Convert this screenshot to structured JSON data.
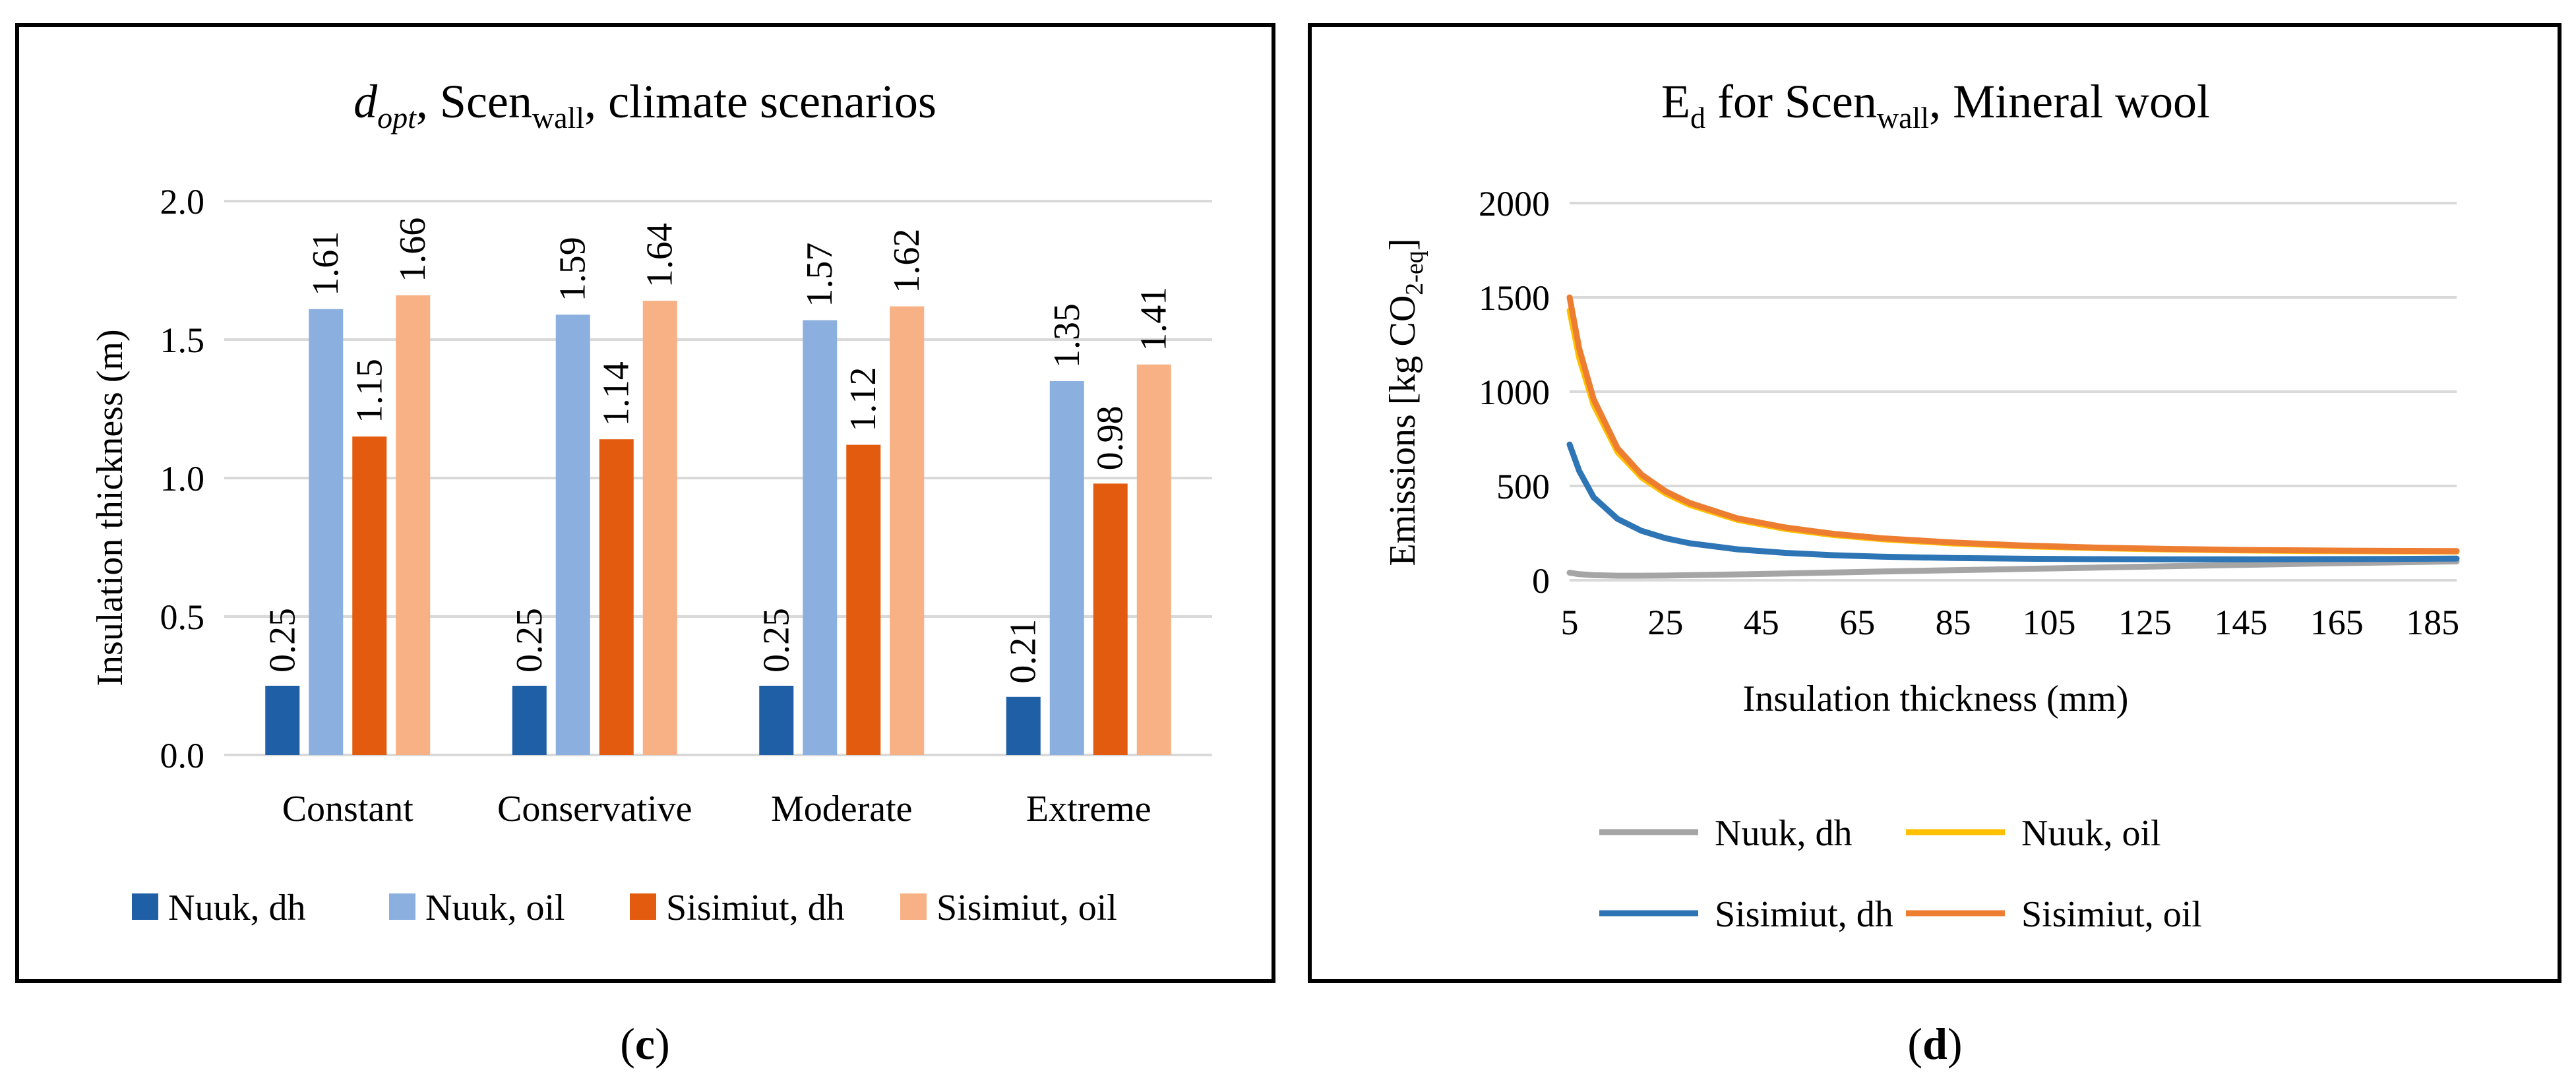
{
  "chart_data": [
    {
      "panel": "c",
      "type": "bar",
      "title": {
        "main": "d",
        "main_sub": "opt",
        "mid": ", Scen",
        "mid_sub": "wall",
        "tail": ", climate scenarios"
      },
      "xlabel": "",
      "ylabel": "Insulation thickness (m)",
      "ylim": [
        0,
        2
      ],
      "yticks": [
        "0.0",
        "0.5",
        "1.0",
        "1.5",
        "2.0"
      ],
      "grid": true,
      "categories": [
        "Constant",
        "Conservative",
        "Moderate",
        "Extreme"
      ],
      "series": [
        {
          "name": "Nuuk, dh",
          "color": "#1F5FA6",
          "values": [
            0.25,
            0.25,
            0.25,
            0.21
          ],
          "labels": [
            "0.25",
            "0.25",
            "0.25",
            "0.21"
          ]
        },
        {
          "name": "Nuuk, oil",
          "color": "#8BB0DF",
          "values": [
            1.61,
            1.59,
            1.57,
            1.35
          ],
          "labels": [
            "1.61",
            "1.59",
            "1.57",
            "1.35"
          ]
        },
        {
          "name": "Sisimiut, dh",
          "color": "#E35B0E",
          "values": [
            1.15,
            1.14,
            1.12,
            0.98
          ],
          "labels": [
            "1.15",
            "1.14",
            "1.12",
            "0.98"
          ]
        },
        {
          "name": "Sisimiut, oil",
          "color": "#F8B184",
          "values": [
            1.66,
            1.64,
            1.62,
            1.41
          ],
          "labels": [
            "1.66",
            "1.64",
            "1.62",
            "1.41"
          ]
        }
      ],
      "legend_position": "bottom",
      "caption": {
        "open": "(",
        "letter": "c",
        "close": ")"
      }
    },
    {
      "panel": "d",
      "type": "line",
      "title": {
        "main": "E",
        "main_sub": "d",
        "mid": " for Scen",
        "mid_sub": "wall",
        "tail": ", Mineral wool"
      },
      "xlabel": "Insulation thickness (mm)",
      "ylabel": {
        "main": "Emissions [kg CO",
        "sub": "2-eq",
        "tail": "]"
      },
      "xlim": [
        5,
        190
      ],
      "ylim": [
        0,
        2000
      ],
      "xticks": [
        "5",
        "25",
        "45",
        "65",
        "85",
        "105",
        "125",
        "145",
        "165",
        "185"
      ],
      "yticks": [
        "0",
        "500",
        "1000",
        "1500",
        "2000"
      ],
      "grid": true,
      "x": [
        5,
        7,
        10,
        15,
        20,
        25,
        30,
        40,
        50,
        60,
        70,
        85,
        100,
        115,
        130,
        145,
        160,
        175,
        190
      ],
      "series": [
        {
          "name": "Nuuk, dh",
          "color": "#A5A5A5",
          "values": [
            40,
            32,
            27,
            24,
            24,
            25,
            27,
            31,
            36,
            41,
            46,
            53,
            60,
            67,
            74,
            81,
            88,
            94,
            100
          ]
        },
        {
          "name": "Nuuk, oil",
          "color": "#FFC000",
          "values": [
            1430,
            1180,
            930,
            680,
            545,
            460,
            400,
            320,
            272,
            240,
            218,
            195,
            180,
            170,
            163,
            158,
            155,
            153,
            152
          ]
        },
        {
          "name": "Sisimiut, dh",
          "color": "#2E75B6",
          "values": [
            720,
            580,
            440,
            325,
            262,
            223,
            196,
            164,
            145,
            133,
            125,
            118,
            114,
            112,
            111,
            111,
            112,
            113,
            115
          ]
        },
        {
          "name": "Sisimiut, oil",
          "color": "#ED7D31",
          "values": [
            1500,
            1230,
            960,
            700,
            560,
            472,
            410,
            328,
            280,
            246,
            223,
            200,
            184,
            173,
            166,
            161,
            158,
            156,
            155
          ]
        }
      ],
      "legend_position": "bottom",
      "caption": {
        "open": "(",
        "letter": "d",
        "close": ")"
      }
    }
  ]
}
